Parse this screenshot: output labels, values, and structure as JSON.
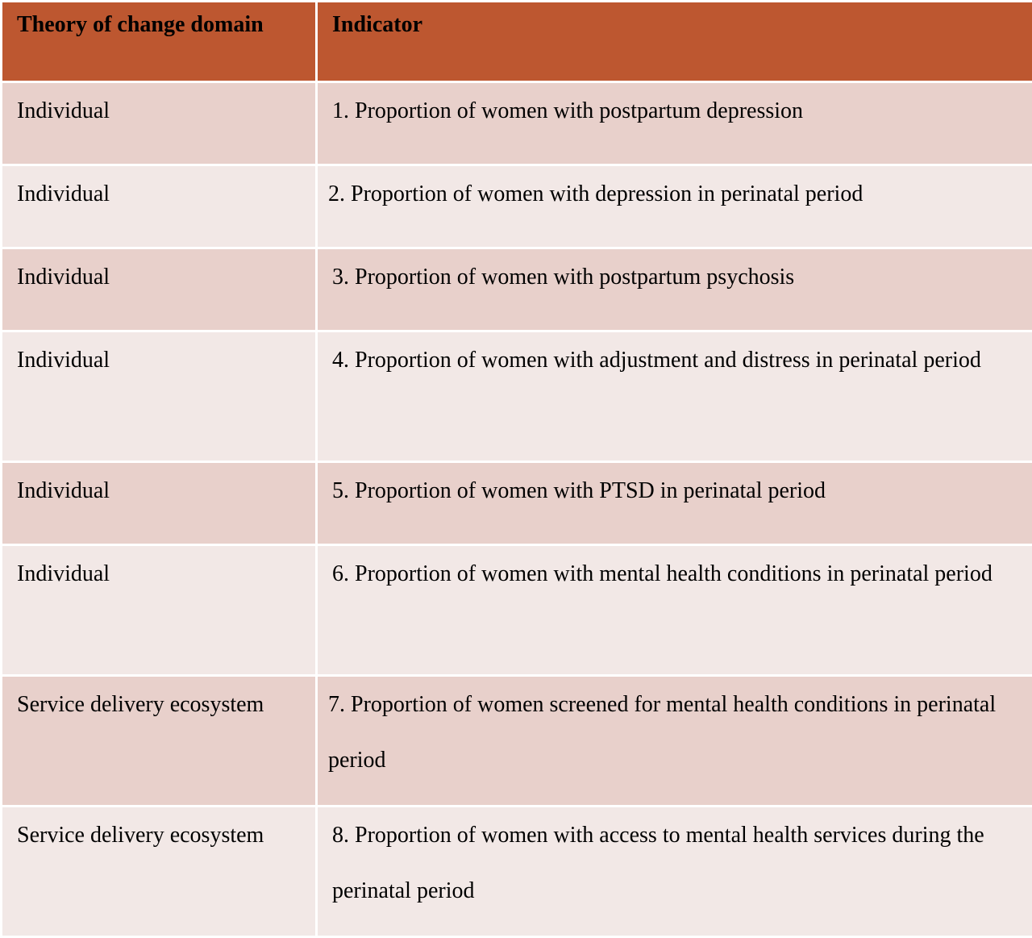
{
  "table": {
    "headers": {
      "domain": "Theory of change domain",
      "indicator": "Indicator"
    },
    "rows": [
      {
        "domain": "Individual",
        "indicator": "1. Proportion of women with postpartum depression"
      },
      {
        "domain": "Individual",
        "indicator": "2. Proportion of women with depression in perinatal period"
      },
      {
        "domain": "Individual",
        "indicator": "3. Proportion of women with postpartum psychosis"
      },
      {
        "domain": "Individual",
        "indicator": "4. Proportion of women with adjustment and distress in perinatal period"
      },
      {
        "domain": "Individual",
        "indicator": "5. Proportion of women with PTSD in perinatal period"
      },
      {
        "domain": "Individual",
        "indicator": "6. Proportion of women with mental health conditions in perinatal period"
      },
      {
        "domain": "Service delivery ecosystem",
        "indicator": "7. Proportion of women screened for mental health conditions in perinatal period"
      },
      {
        "domain": "Service delivery ecosystem",
        "indicator": "8. Proportion of women with access to mental health services during the perinatal period"
      }
    ]
  },
  "colors": {
    "header_bg": "#bd5730",
    "row_dark": "#e8d0cb",
    "row_light": "#f2e8e6"
  }
}
